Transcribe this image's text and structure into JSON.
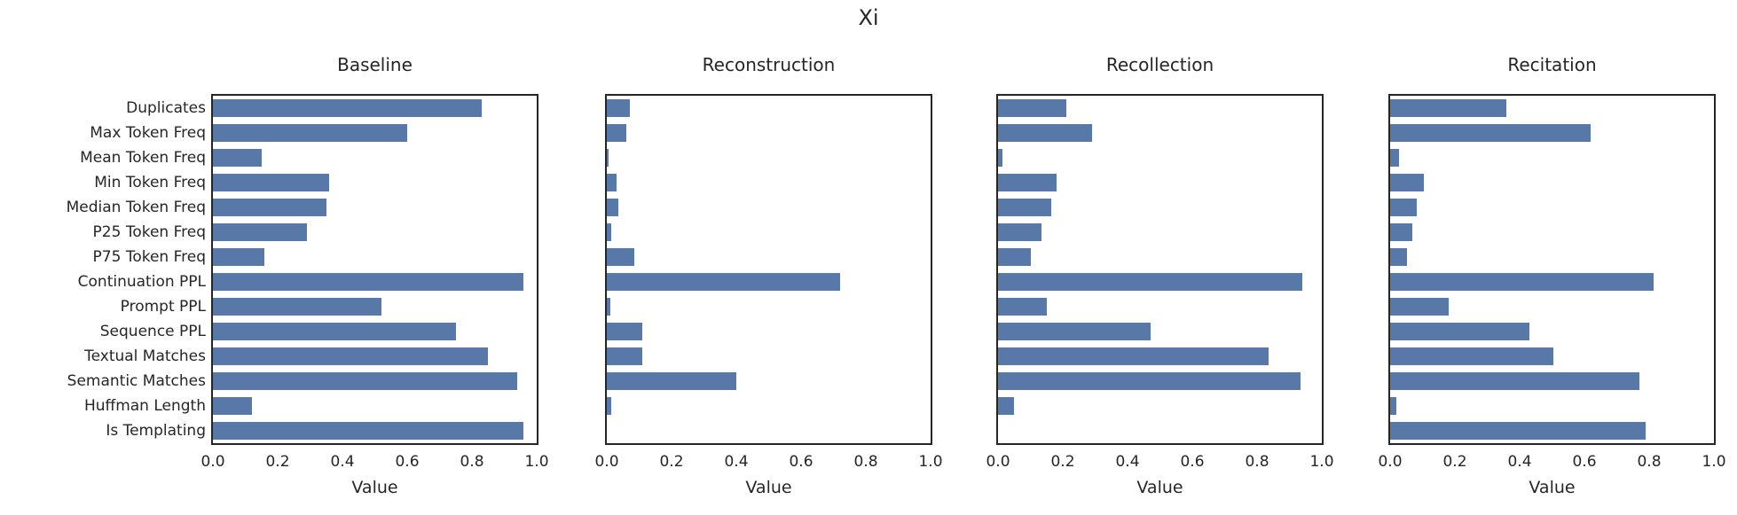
{
  "chart_data": {
    "type": "bar",
    "orientation": "horizontal",
    "title": "Xi",
    "xlabel": "Value",
    "xlim": [
      0,
      1
    ],
    "xtick_values": [
      0.0,
      0.2,
      0.4,
      0.6,
      0.8,
      1.0
    ],
    "xtick_labels": [
      "0.0",
      "0.2",
      "0.4",
      "0.6",
      "0.8",
      "1.0"
    ],
    "grid": false,
    "legend": "none",
    "bar_color": "#5878a8",
    "categories": [
      "Duplicates",
      "Max Token Freq",
      "Mean Token Freq",
      "Min Token Freq",
      "Median Token Freq",
      "P25 Token Freq",
      "P75 Token Freq",
      "Continuation PPL",
      "Prompt PPL",
      "Sequence PPL",
      "Textual Matches",
      "Semantic Matches",
      "Huffman Length",
      "Is Templating"
    ],
    "panels": [
      {
        "title": "Baseline",
        "values": [
          0.83,
          0.6,
          0.15,
          0.36,
          0.35,
          0.29,
          0.16,
          0.96,
          0.52,
          0.75,
          0.85,
          0.94,
          0.12,
          0.96
        ]
      },
      {
        "title": "Reconstruction",
        "values": [
          0.07,
          0.06,
          0.005,
          0.03,
          0.035,
          0.015,
          0.085,
          0.72,
          0.01,
          0.11,
          0.11,
          0.4,
          0.015,
          0.0
        ]
      },
      {
        "title": "Recollection",
        "values": [
          0.21,
          0.29,
          0.015,
          0.18,
          0.165,
          0.135,
          0.1,
          0.94,
          0.15,
          0.47,
          0.835,
          0.935,
          0.05,
          0.0
        ]
      },
      {
        "title": "Recitation",
        "values": [
          0.36,
          0.62,
          0.027,
          0.104,
          0.082,
          0.068,
          0.052,
          0.815,
          0.18,
          0.43,
          0.505,
          0.77,
          0.02,
          0.79
        ]
      }
    ]
  }
}
